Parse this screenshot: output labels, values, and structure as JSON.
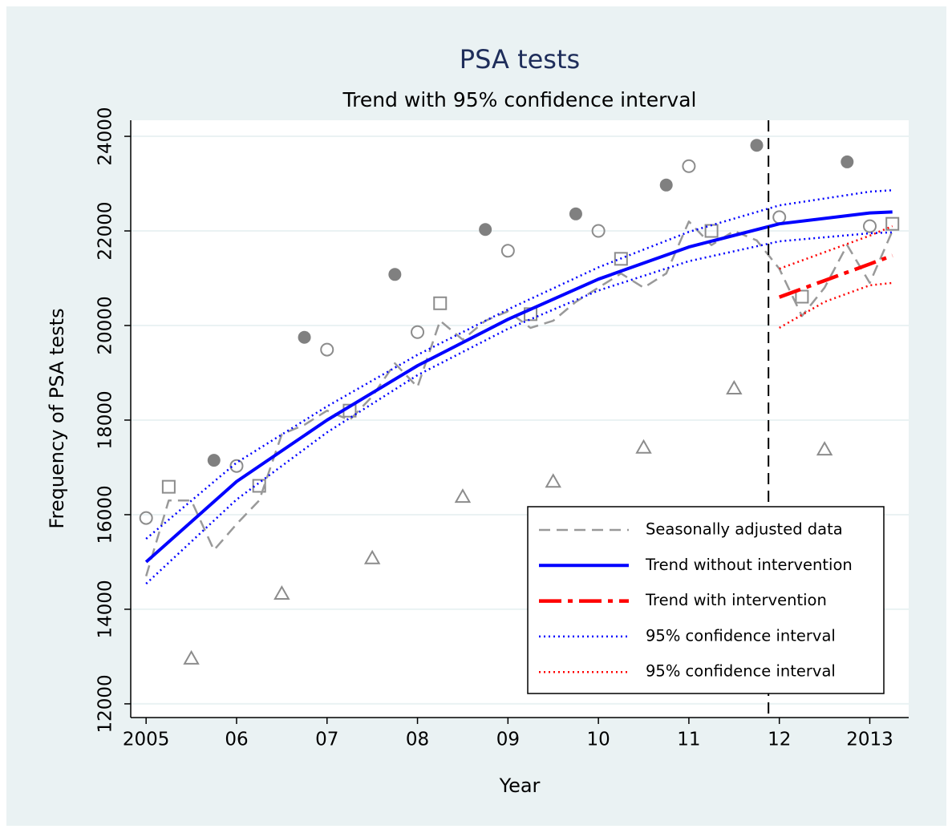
{
  "chart_data": {
    "type": "line",
    "title": "PSA tests",
    "subtitle": "Trend with 95% confidence interval",
    "x_label": "Year",
    "y_label": "Frequency of PSA tests",
    "xlim": [
      2004.83,
      2013.43
    ],
    "ylim": [
      11710,
      24340
    ],
    "xticks": [
      2005,
      {
        "value": 2006,
        "label": "06"
      },
      {
        "value": 2007,
        "label": "07"
      },
      {
        "value": 2008,
        "label": "08"
      },
      {
        "value": 2009,
        "label": "09"
      },
      {
        "value": 2010,
        "label": "10"
      },
      {
        "value": 2011,
        "label": "11"
      },
      {
        "value": 2012,
        "label": "12"
      },
      2013
    ],
    "yticks": [
      12000,
      14000,
      16000,
      18000,
      20000,
      22000,
      24000
    ],
    "grid": true,
    "vline": 2011.88,
    "legend": "lower-right",
    "series": [
      {
        "name": "Seasonally adjusted data",
        "color": "#999999",
        "style": "dashed",
        "x": [
          2005,
          2005.25,
          2005.5,
          2005.75,
          2006,
          2006.25,
          2006.5,
          2006.75,
          2007,
          2007.25,
          2007.5,
          2007.75,
          2008,
          2008.25,
          2008.5,
          2008.75,
          2009,
          2009.25,
          2009.5,
          2009.75,
          2010,
          2010.25,
          2010.5,
          2010.75,
          2011,
          2011.25,
          2011.5,
          2011.75,
          2012,
          2012.25,
          2012.5,
          2012.75,
          2013,
          2013.25
        ],
        "values": [
          14700,
          16300,
          16300,
          15250,
          15800,
          16300,
          17700,
          17900,
          18200,
          18000,
          18500,
          19200,
          18700,
          20100,
          19700,
          20100,
          20300,
          19950,
          20100,
          20500,
          20800,
          21100,
          20800,
          21100,
          22200,
          21700,
          22000,
          21800,
          21200,
          20200,
          20800,
          21700,
          20900,
          22000
        ]
      },
      {
        "name": "Trend without intervention",
        "color": "#0000ff",
        "style": "solid",
        "x": [
          2005,
          2006,
          2007,
          2008,
          2009,
          2010,
          2011,
          2012,
          2013,
          2013.25
        ],
        "values": [
          15000,
          16700,
          18000,
          19150,
          20130,
          20980,
          21660,
          22150,
          22380,
          22400
        ]
      },
      {
        "name": "Trend with intervention",
        "color": "#ff0000",
        "style": "longdash-dot",
        "x": [
          2012,
          2012.5,
          2013,
          2013.25
        ],
        "values": [
          20600,
          20950,
          21300,
          21480
        ]
      },
      {
        "name": "95% confidence interval",
        "color": "#0000ff",
        "style": "dotted",
        "x": [
          2005,
          2006,
          2007,
          2008,
          2009,
          2010,
          2011,
          2012,
          2013,
          2013.25
        ],
        "values": [
          15490,
          17100,
          18290,
          19380,
          20340,
          21230,
          21980,
          22540,
          22830,
          22860
        ],
        "lower": [
          14540,
          16320,
          17740,
          18950,
          19930,
          20740,
          21360,
          21780,
          21950,
          21970
        ]
      },
      {
        "name": "95% confidence interval",
        "color": "#ff0000",
        "style": "dotted",
        "x": [
          2012,
          2012.5,
          2013,
          2013.25
        ],
        "values": [
          21200,
          21550,
          21900,
          22100
        ],
        "lower": [
          19950,
          20500,
          20850,
          20900
        ]
      }
    ],
    "points": [
      {
        "marker": "circle-open",
        "color": "#8c8c8c",
        "x": [
          2005,
          2006,
          2007,
          2008,
          2009,
          2010,
          2011,
          2012,
          2013
        ],
        "values": [
          15930,
          17030,
          19490,
          19860,
          21580,
          22000,
          23370,
          22290,
          22100
        ]
      },
      {
        "marker": "square-open",
        "color": "#8c8c8c",
        "x": [
          2005.25,
          2006.25,
          2007.25,
          2008.25,
          2009.25,
          2010.25,
          2011.25,
          2012.25,
          2013.25
        ],
        "values": [
          16590,
          16610,
          18200,
          20470,
          20240,
          21410,
          22000,
          20610,
          22150
        ]
      },
      {
        "marker": "triangle-open",
        "color": "#8c8c8c",
        "x": [
          2005.5,
          2006.5,
          2007.5,
          2008.5,
          2009.5,
          2010.5,
          2011.5,
          2012.5
        ],
        "values": [
          12950,
          14320,
          15070,
          16370,
          16690,
          17410,
          18660,
          17370
        ]
      },
      {
        "marker": "circle-filled",
        "color": "#808080",
        "x": [
          2005.75,
          2006.75,
          2007.75,
          2008.75,
          2009.75,
          2010.75,
          2011.75,
          2012.75
        ],
        "values": [
          17150,
          19750,
          21080,
          22030,
          22360,
          22970,
          23810,
          23460
        ]
      }
    ]
  }
}
